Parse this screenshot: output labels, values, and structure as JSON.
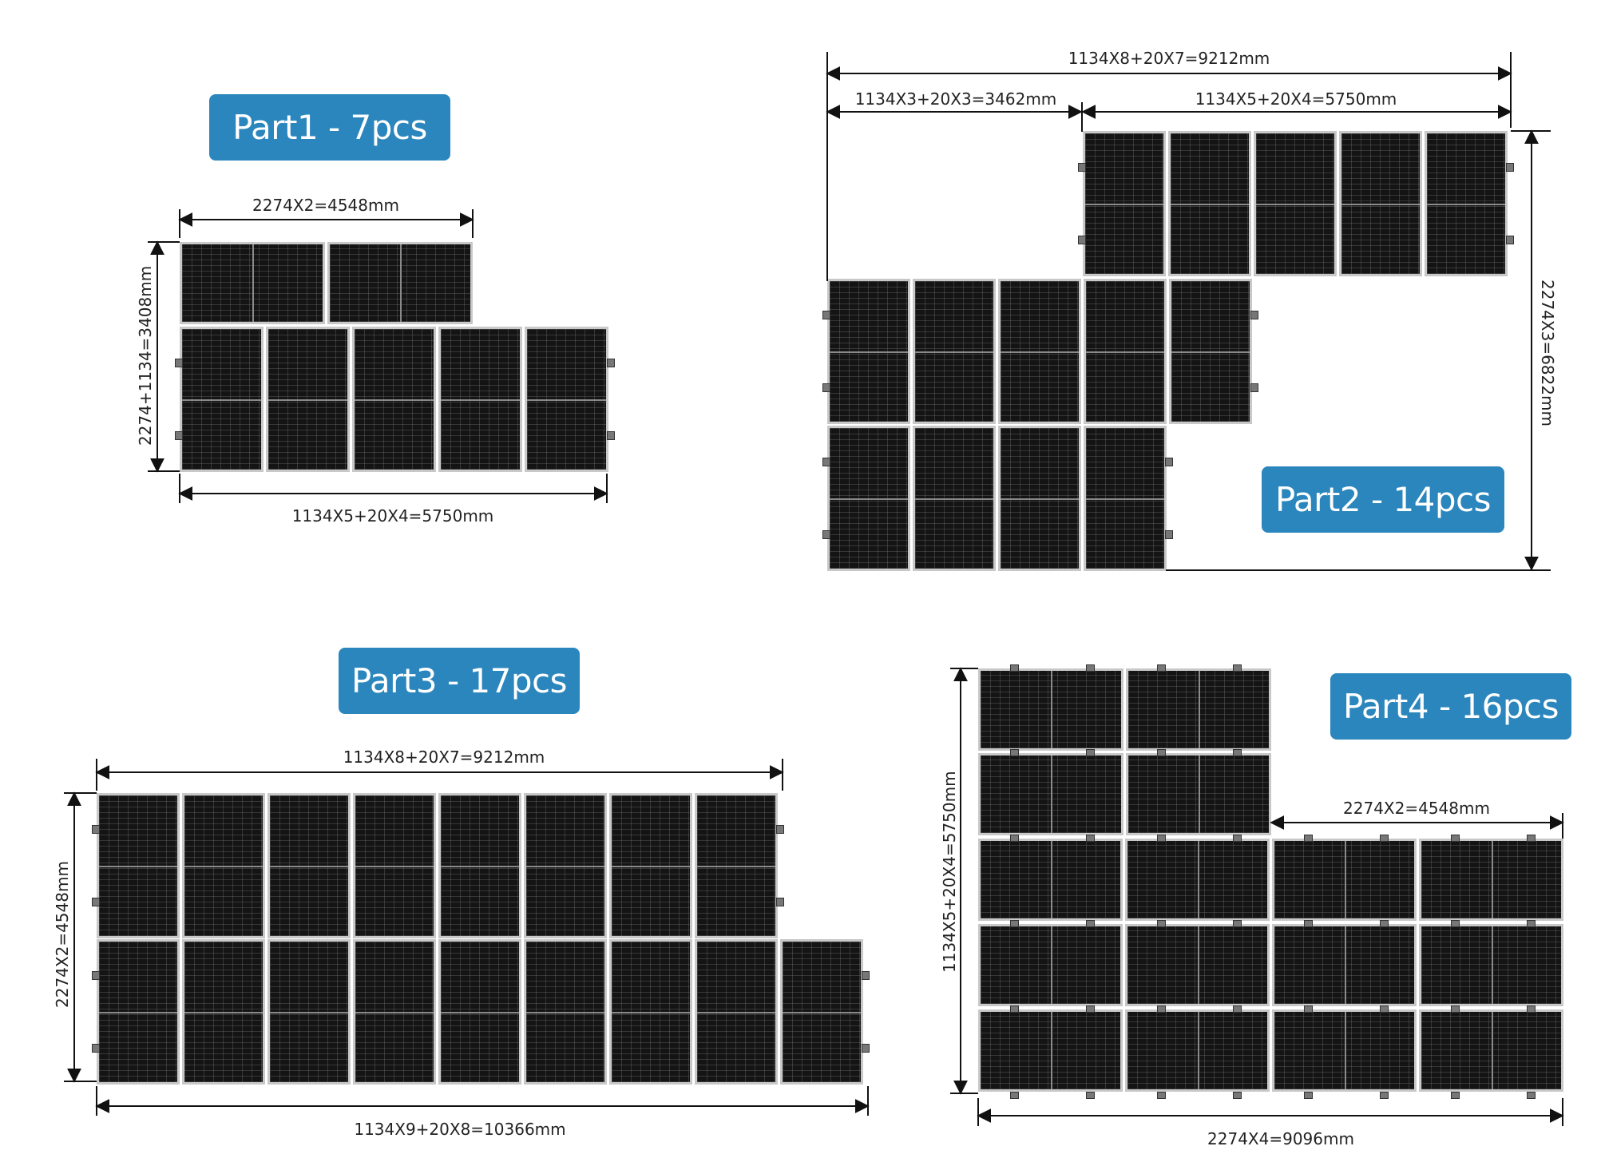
{
  "parts": [
    {
      "title": "Part1 - 7pcs",
      "dims": {
        "top": "2274X2=4548mm",
        "bottom": "1134X5+20X4=5750mm",
        "left": "2274+1134=3408mm"
      }
    },
    {
      "title": "Part2 - 14pcs",
      "dims": {
        "total": "1134X8+20X7=9212mm",
        "left": "1134X3+20X3=3462mm",
        "right": "1134X5+20X4=5750mm",
        "side": "2274X3=6822mm"
      }
    },
    {
      "title": "Part3 - 17pcs",
      "dims": {
        "top": "1134X8+20X7=9212mm",
        "bottom": "1134X9+20X8=10366mm",
        "left": "2274X2=4548mm"
      }
    },
    {
      "title": "Part4 - 16pcs",
      "dims": {
        "mid": "2274X2=4548mm",
        "bottom": "2274X4=9096mm",
        "left": "1134X5+20X4=5750mm"
      }
    }
  ]
}
